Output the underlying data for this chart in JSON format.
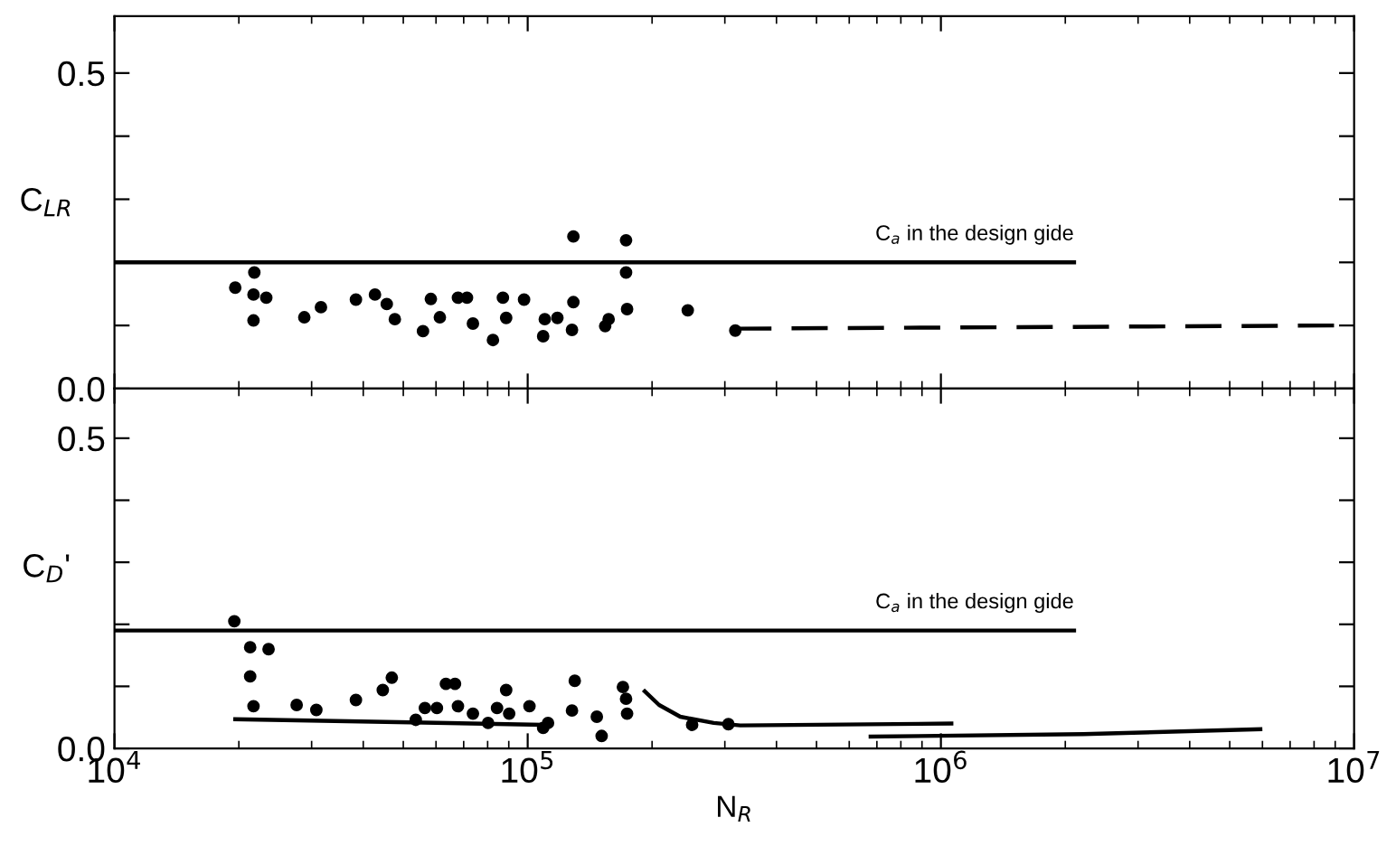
{
  "chart_data": [
    {
      "type": "scatter",
      "ylabel": "C$_{LR}$",
      "log": "x",
      "tick_labels": "y",
      "xlim": [
        10000,
        10000000
      ],
      "ylim": [
        0,
        0.59
      ],
      "xticks": [
        10000,
        100000,
        1000000,
        10000000
      ],
      "yticks": [
        {
          "value": 0,
          "label": "0.0"
        },
        {
          "value": 0.1,
          "label": null
        },
        {
          "value": 0.2,
          "label": null
        },
        {
          "value": 0.3,
          "label": null
        },
        {
          "value": 0.4,
          "label": null
        },
        0.5
      ],
      "series": [
        {
          "marker": "circle",
          "color": "#000000",
          "x": [
            19600,
            21800,
            21700,
            23300,
            21700,
            28800,
            31600,
            38400,
            42700,
            45600,
            47700,
            55800,
            58300,
            61300,
            67800,
            71300,
            73700,
            82400,
            87100,
            98000,
            88700,
            110000,
            109000,
            118000,
            128000,
            129000,
            129000,
            154000,
            157000,
            173000,
            173000,
            174000,
            244000,
            318000
          ],
          "values": [
            0.16,
            0.184,
            0.149,
            0.144,
            0.108,
            0.113,
            0.129,
            0.141,
            0.149,
            0.134,
            0.11,
            0.091,
            0.142,
            0.113,
            0.144,
            0.144,
            0.103,
            0.077,
            0.144,
            0.141,
            0.112,
            0.11,
            0.083,
            0.112,
            0.093,
            0.137,
            0.241,
            0.099,
            0.11,
            0.235,
            0.184,
            0.126,
            0.124,
            0.092
          ]
        },
        {
          "type": "line",
          "name": "C$_{a}$ in the design gide",
          "color": "#000000",
          "line_style": "solid",
          "x": [
            10000,
            2100000
          ],
          "values": [
            0.2,
            0.2
          ]
        },
        {
          "type": "line",
          "color": "#000000",
          "line_style": "dashed",
          "x": [
            318000,
            9000000
          ],
          "values": [
            0.095,
            0.1
          ]
        }
      ]
    },
    {
      "type": "scatter",
      "ylabel": "C$_{D}$'",
      "xlabel": "N$_{R}$",
      "log": "x",
      "xlim": [
        10000,
        10000000
      ],
      "ylim": [
        0,
        0.58
      ],
      "xticks": [
        {
          "value": 10000,
          "label": "10$^{4}$"
        },
        {
          "value": 100000,
          "label": "10$^{5}$"
        },
        {
          "value": 1000000,
          "label": "10$^{6}$"
        },
        {
          "value": 10000000,
          "label": "10$^{7}$"
        }
      ],
      "yticks": [
        {
          "value": 0,
          "label": "0.0"
        },
        {
          "value": 0.1,
          "label": null
        },
        {
          "value": 0.2,
          "label": null
        },
        {
          "value": 0.3,
          "label": null
        },
        {
          "value": 0.4,
          "label": null
        },
        0.5
      ],
      "series": [
        {
          "marker": "circle",
          "color": "#000000",
          "x": [
            19500,
            21300,
            23600,
            21300,
            21700,
            27600,
            30800,
            38400,
            46900,
            44600,
            53600,
            56400,
            60300,
            63400,
            66700,
            67800,
            73700,
            80200,
            84300,
            88700,
            90200,
            101000,
            109000,
            112000,
            130000,
            128000,
            147000,
            151000,
            170000,
            173000,
            174000,
            250000,
            306000
          ],
          "values": [
            0.205,
            0.163,
            0.16,
            0.116,
            0.068,
            0.07,
            0.062,
            0.078,
            0.114,
            0.094,
            0.046,
            0.065,
            0.065,
            0.104,
            0.104,
            0.068,
            0.056,
            0.041,
            0.065,
            0.094,
            0.056,
            0.068,
            0.033,
            0.041,
            0.109,
            0.061,
            0.051,
            0.02,
            0.099,
            0.08,
            0.056,
            0.038,
            0.039
          ]
        },
        {
          "type": "line",
          "name": "C$_{a}$ in the design gide",
          "color": "#000000",
          "line_style": "solid",
          "x": [
            10000,
            2100000
          ],
          "values": [
            0.19,
            0.19
          ]
        },
        {
          "type": "line",
          "color": "#000000",
          "line_style": "solid",
          "x": [
            19600,
            108000
          ],
          "values": [
            0.047,
            0.038
          ]
        },
        {
          "type": "line",
          "color": "#000000",
          "line_style": "solid",
          "x": [
            192000,
            208000,
            234000,
            282000,
            327000,
            1060000
          ],
          "values": [
            0.092,
            0.07,
            0.051,
            0.041,
            0.037,
            0.04
          ]
        },
        {
          "type": "line",
          "color": "#000000",
          "line_style": "solid",
          "x": [
            676000,
            2210000,
            5930000
          ],
          "values": [
            0.019,
            0.023,
            0.031
          ]
        }
      ]
    }
  ]
}
